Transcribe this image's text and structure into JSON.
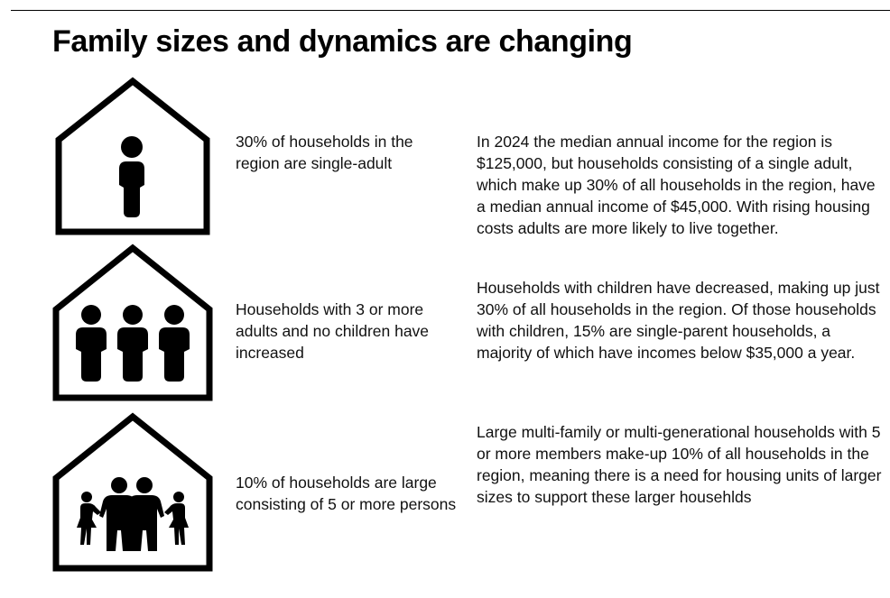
{
  "title": "Family sizes and dynamics are changing",
  "rows": [
    {
      "icon": "house-single-adult-icon",
      "caption": "30% of households in the region are single-adult",
      "description": "In 2024 the median annual income for the region is $125,000, but households consisting of a single adult, which make up 30% of all households in the region, have a median annual income of $45,000. With rising housing costs adults are more likely to live together."
    },
    {
      "icon": "house-three-adults-icon",
      "caption": "Households with 3 or more adults and no children have increased",
      "description": "Households with children have decreased, making up just 30% of all households in the region. Of those households with children, 15% are single-parent households, a majority of which have incomes below $35,000 a year."
    },
    {
      "icon": "house-family-icon",
      "caption": "10% of households are large consisting of 5 or more persons",
      "description": "Large multi-family or multi-generational households with 5 or more members make-up 10% of all households in the region, meaning there is a need for housing units of larger sizes to support these larger househlds"
    }
  ],
  "colors": {
    "ink": "#000000",
    "text": "#111111",
    "background": "#ffffff"
  }
}
